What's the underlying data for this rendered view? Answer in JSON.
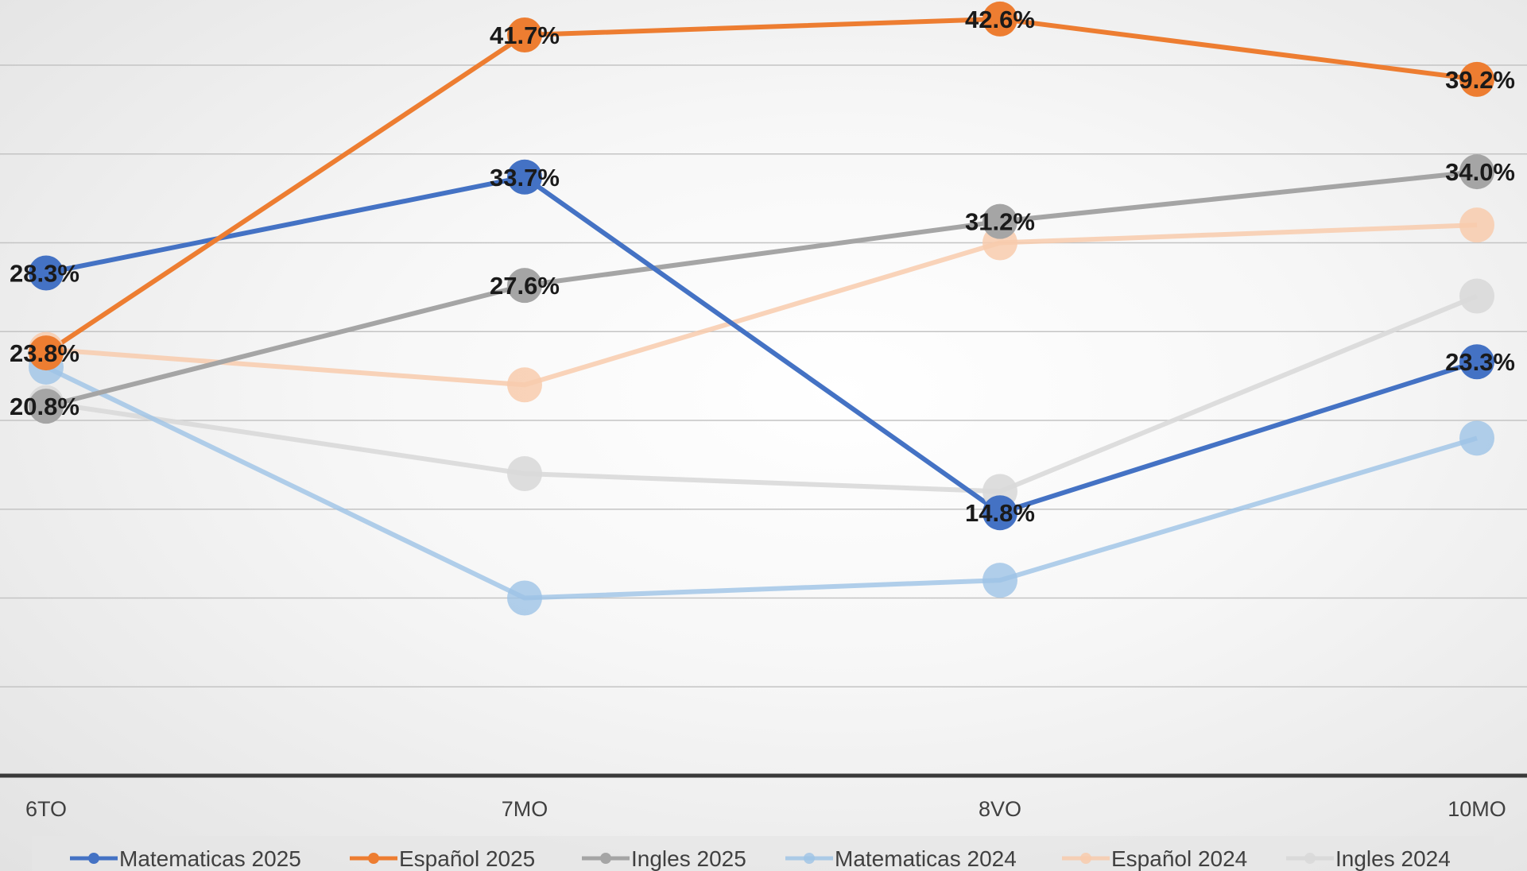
{
  "chart_data": {
    "type": "line",
    "categories": [
      "6TO",
      "7MO",
      "8VO",
      "10MO"
    ],
    "ylim": [
      0,
      45
    ],
    "grid": true,
    "legend_position": "bottom",
    "series": [
      {
        "name": "Matematicas 2025",
        "color": "#4472C4",
        "opacity": 1.0,
        "values": [
          28.3,
          33.7,
          14.8,
          23.3
        ],
        "labels": [
          "28.3%",
          "33.7%",
          "14.8%",
          "23.3%"
        ]
      },
      {
        "name": "Español  2025",
        "color": "#ED7D31",
        "opacity": 1.0,
        "values": [
          23.8,
          41.7,
          42.6,
          39.2
        ],
        "labels": [
          "23.8%",
          "41.7%",
          "42.6%",
          "39.2%"
        ]
      },
      {
        "name": "Ingles 2025",
        "color": "#A5A5A5",
        "opacity": 1.0,
        "values": [
          20.8,
          27.6,
          31.2,
          34.0
        ],
        "labels": [
          "20.8%",
          "27.6%",
          "31.2%",
          "34.0%"
        ]
      },
      {
        "name": "Matematicas 2024",
        "color": "#9DC3E6",
        "opacity": 0.8,
        "values": [
          23.0,
          10.0,
          11.0,
          19.0
        ],
        "labels": []
      },
      {
        "name": "Español 2024",
        "color": "#F8CBAD",
        "opacity": 0.85,
        "values": [
          24.0,
          22.0,
          30.0,
          31.0
        ],
        "labels": []
      },
      {
        "name": "Ingles 2024",
        "color": "#D9D9D9",
        "opacity": 0.9,
        "values": [
          21.0,
          17.0,
          16.0,
          27.0
        ],
        "labels": []
      }
    ]
  }
}
